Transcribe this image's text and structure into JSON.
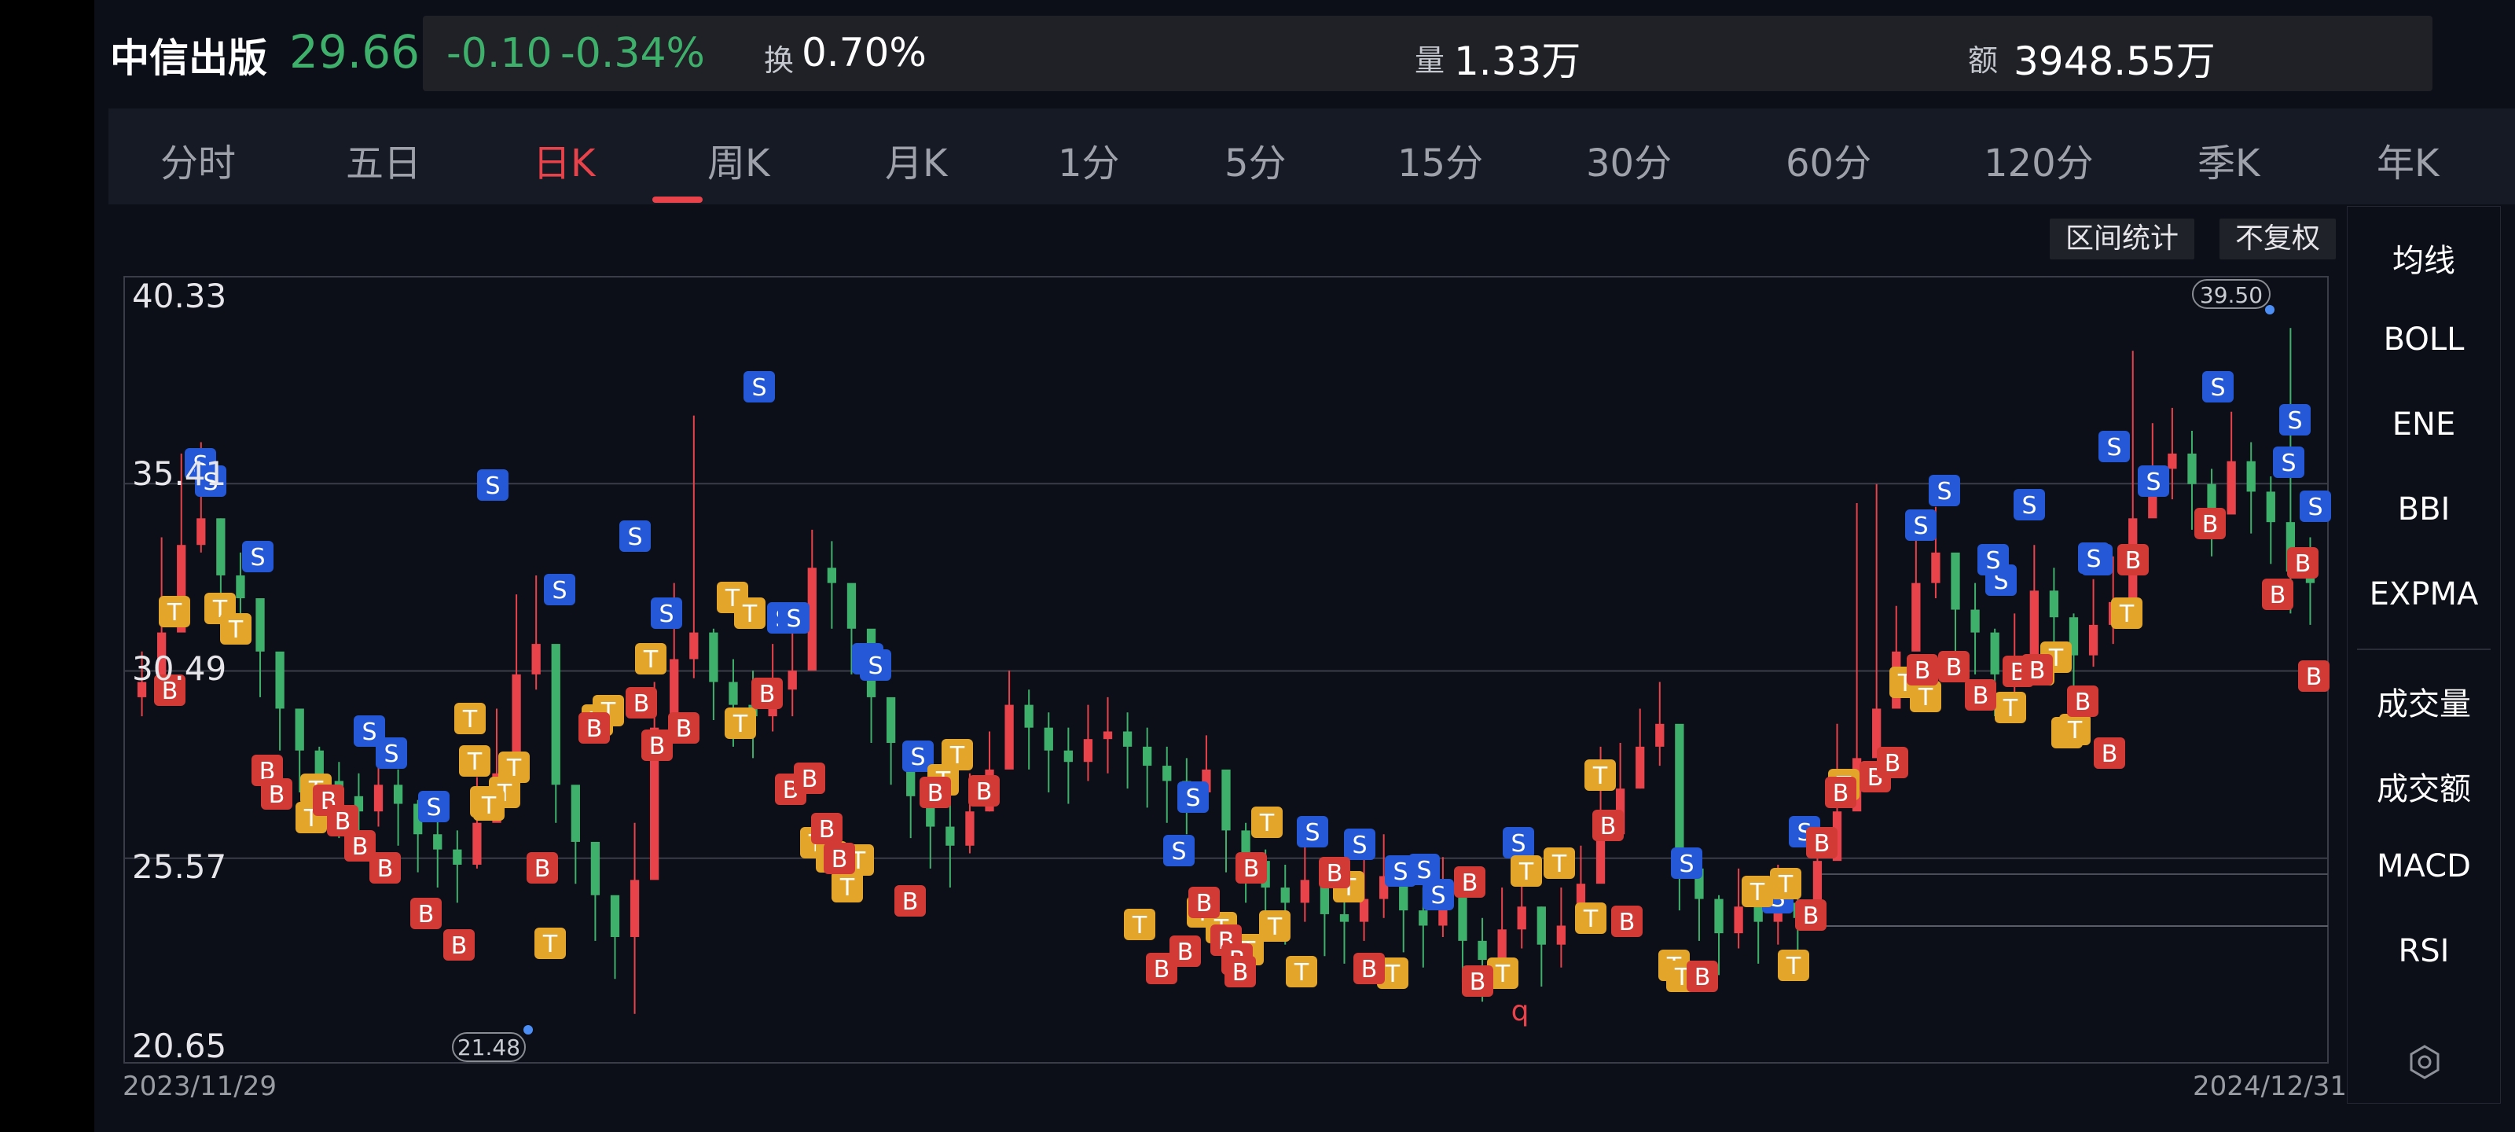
{
  "quote": {
    "name": "中信出版",
    "price": "29.66",
    "change": "-0.10",
    "change_pct": "-0.34%",
    "turnover_label": "换",
    "turnover": "0.70%",
    "volume_label": "量",
    "volume": "1.33万",
    "amount_label": "额",
    "amount": "3948.55万"
  },
  "tabs": [
    "分时",
    "五日",
    "日K",
    "周K",
    "月K",
    "1分",
    "5分",
    "15分",
    "30分",
    "60分",
    "120分",
    "季K",
    "年K"
  ],
  "active_tab": "日K",
  "chart_buttons": {
    "range_stats": "区间统计",
    "adjust": "不复权"
  },
  "y_axis": [
    "40.33",
    "35.41",
    "30.49",
    "25.57",
    "20.65"
  ],
  "dates": {
    "start": "2023/11/29",
    "end": "2024/12/31"
  },
  "markers": {
    "high": "39.50",
    "low": "21.48",
    "q": "q"
  },
  "indicators": [
    "均线",
    "BOLL",
    "ENE",
    "BBI",
    "EXPMA",
    "成交量",
    "成交额",
    "MACD",
    "RSI"
  ],
  "colors": {
    "up": "#e8424a",
    "down": "#3fb06b",
    "sell": "#2458d6",
    "buy": "#d23b35",
    "t": "#e3a52a"
  },
  "chart_data": {
    "type": "candlestick",
    "x_range": [
      "2023/11/29",
      "2024/12/31"
    ],
    "ylim": [
      20.65,
      40.33
    ],
    "y_ticks": [
      40.33,
      35.41,
      30.49,
      25.57,
      20.65
    ],
    "closes": [
      30.2,
      31.5,
      33.8,
      34.5,
      33.0,
      32.4,
      31.0,
      29.5,
      28.4,
      27.6,
      27.2,
      26.8,
      27.5,
      27.0,
      26.2,
      25.8,
      25.4,
      26.5,
      27.8,
      30.4,
      31.2,
      27.5,
      26.0,
      24.6,
      23.5,
      25.0,
      29.0,
      30.8,
      31.5,
      30.2,
      29.6,
      29.3,
      30.0,
      30.5,
      33.2,
      32.8,
      31.6,
      29.8,
      28.6,
      27.2,
      26.4,
      25.9,
      26.8,
      27.9,
      29.6,
      29.0,
      28.4,
      28.1,
      28.7,
      28.9,
      28.5,
      28.0,
      27.6,
      27.3,
      27.9,
      26.3,
      25.5,
      24.8,
      24.4,
      25.0,
      24.1,
      23.9,
      24.5,
      25.1,
      24.2,
      23.8,
      24.6,
      23.4,
      22.9,
      23.7,
      24.3,
      23.3,
      23.8,
      24.9,
      26.2,
      27.4,
      28.5,
      29.1,
      25.3,
      24.5,
      23.6,
      24.3,
      23.9,
      24.4,
      24.0,
      25.5,
      26.8,
      28.2,
      29.5,
      31.0,
      32.8,
      33.6,
      32.1,
      31.5,
      30.4,
      30.8,
      32.6,
      31.9,
      30.9,
      31.7,
      32.3,
      34.5,
      35.8,
      36.2,
      35.4,
      34.6,
      36.0,
      35.2,
      34.4,
      33.1,
      32.8
    ],
    "highs": [
      31.0,
      34.0,
      36.2,
      36.5,
      34.5,
      33.6,
      32.2,
      30.6,
      29.4,
      28.5,
      28.1,
      27.8,
      28.4,
      27.9,
      27.1,
      26.8,
      26.3,
      27.7,
      29.5,
      32.5,
      33.0,
      28.8,
      27.2,
      25.5,
      24.4,
      26.5,
      30.2,
      32.8,
      37.2,
      31.6,
      30.8,
      30.5,
      31.2,
      31.8,
      34.2,
      33.9,
      32.7,
      30.9,
      29.7,
      28.3,
      27.5,
      27.0,
      27.8,
      28.9,
      30.5,
      30.0,
      29.4,
      29.0,
      29.6,
      29.8,
      29.4,
      29.0,
      28.5,
      28.2,
      28.8,
      27.3,
      26.5,
      25.8,
      25.4,
      26.0,
      25.1,
      24.9,
      25.6,
      26.2,
      25.2,
      24.8,
      25.6,
      24.4,
      24.0,
      24.8,
      25.4,
      24.3,
      24.8,
      25.9,
      28.5,
      28.6,
      29.5,
      30.2,
      26.4,
      25.5,
      24.6,
      25.3,
      24.9,
      25.4,
      25.0,
      26.6,
      29.1,
      34.9,
      35.4,
      32.2,
      34.0,
      34.8,
      33.3,
      32.8,
      31.6,
      32.0,
      33.8,
      33.2,
      32.0,
      32.9,
      33.5,
      38.9,
      37.0,
      37.4,
      36.8,
      35.8,
      37.3,
      36.5,
      35.6,
      39.5,
      34.0
    ],
    "lows": [
      29.3,
      30.6,
      32.8,
      33.6,
      32.0,
      31.2,
      29.8,
      28.4,
      27.3,
      26.6,
      26.1,
      25.8,
      26.4,
      25.9,
      25.2,
      24.8,
      24.4,
      25.3,
      26.9,
      28.9,
      30.0,
      26.5,
      24.9,
      23.4,
      22.4,
      21.48,
      27.8,
      29.6,
      30.3,
      29.2,
      28.5,
      28.2,
      28.9,
      29.3,
      31.8,
      31.6,
      30.4,
      28.6,
      27.5,
      26.1,
      25.3,
      24.8,
      25.7,
      26.8,
      28.4,
      27.9,
      27.3,
      27.0,
      27.6,
      27.8,
      27.4,
      26.9,
      26.5,
      26.2,
      26.8,
      25.2,
      24.4,
      23.7,
      23.3,
      23.9,
      23.0,
      22.8,
      23.4,
      24.0,
      23.1,
      22.7,
      23.5,
      22.3,
      21.8,
      22.6,
      23.2,
      22.2,
      22.7,
      23.8,
      25.1,
      26.3,
      27.4,
      28.0,
      24.2,
      23.4,
      22.5,
      23.2,
      22.8,
      23.3,
      22.9,
      24.4,
      25.7,
      27.1,
      28.4,
      29.8,
      31.6,
      32.4,
      31.0,
      30.4,
      29.3,
      29.7,
      31.4,
      30.8,
      29.8,
      30.6,
      31.2,
      33.3,
      34.6,
      35.0,
      34.2,
      33.5,
      34.8,
      34.1,
      33.3,
      32.0,
      31.7
    ]
  }
}
